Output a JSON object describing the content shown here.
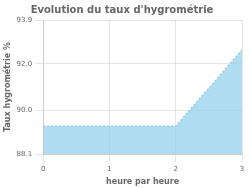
{
  "chart_data": {
    "type": "area",
    "title": "Evolution du taux d'hygrométrie",
    "xlabel": "heure par heure",
    "ylabel": "Taux hygrométrie %",
    "x": [
      0,
      2,
      3
    ],
    "values": [
      89.3,
      89.3,
      92.6
    ],
    "color": "#87CEEB",
    "line_style": "dotted",
    "xlim": [
      0,
      3
    ],
    "ylim": [
      88.1,
      93.9
    ],
    "xticks": [
      0,
      1,
      2,
      3
    ],
    "yticks": [
      88.1,
      {
        "value": 90.0,
        "label": "90.0"
      },
      {
        "value": 92.0,
        "label": "92.0"
      },
      93.9
    ],
    "grid": true
  }
}
